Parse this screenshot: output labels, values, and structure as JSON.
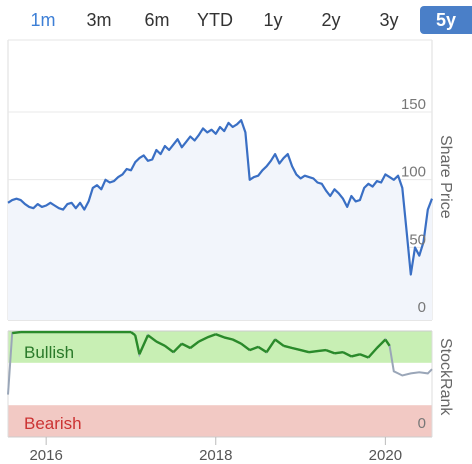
{
  "range_tabs": [
    {
      "label": "1m"
    },
    {
      "label": "3m"
    },
    {
      "label": "6m"
    },
    {
      "label": "YTD"
    },
    {
      "label": "1y"
    },
    {
      "label": "2y"
    },
    {
      "label": "3y"
    },
    {
      "label": "5y"
    }
  ],
  "colors": {
    "price_line": "#3a6fc4",
    "price_fill": "#f2f5fb",
    "bullish_band": "#c8efb4",
    "bearish_band": "#f2c9c4",
    "rank_line_bull": "#2a8a2a",
    "rank_line_bear": "#9aa6b8",
    "selected_tab": "#4a7fc8"
  },
  "chart_data": [
    {
      "type": "area",
      "ylabel": "Share Price",
      "yticks": [
        0,
        50,
        100,
        150
      ],
      "ylim": [
        0,
        160
      ],
      "xlim": [
        2015.55,
        2020.55
      ],
      "x": [
        2015.55,
        2015.6,
        2015.65,
        2015.7,
        2015.75,
        2015.8,
        2015.85,
        2015.9,
        2015.95,
        2016.0,
        2016.05,
        2016.1,
        2016.15,
        2016.2,
        2016.25,
        2016.3,
        2016.35,
        2016.4,
        2016.45,
        2016.5,
        2016.55,
        2016.6,
        2016.65,
        2016.7,
        2016.75,
        2016.8,
        2016.85,
        2016.9,
        2016.95,
        2017.0,
        2017.05,
        2017.1,
        2017.15,
        2017.2,
        2017.25,
        2017.3,
        2017.35,
        2017.4,
        2017.45,
        2017.5,
        2017.55,
        2017.6,
        2017.65,
        2017.7,
        2017.75,
        2017.8,
        2017.85,
        2017.9,
        2017.95,
        2018.0,
        2018.05,
        2018.1,
        2018.15,
        2018.2,
        2018.25,
        2018.3,
        2018.35,
        2018.4,
        2018.45,
        2018.5,
        2018.55,
        2018.6,
        2018.65,
        2018.7,
        2018.75,
        2018.8,
        2018.85,
        2018.9,
        2018.95,
        2019.0,
        2019.05,
        2019.1,
        2019.15,
        2019.2,
        2019.25,
        2019.3,
        2019.35,
        2019.4,
        2019.45,
        2019.5,
        2019.55,
        2019.6,
        2019.65,
        2019.7,
        2019.75,
        2019.8,
        2019.85,
        2019.9,
        2019.95,
        2020.0,
        2020.05,
        2020.1,
        2020.15,
        2020.2,
        2020.25,
        2020.3,
        2020.35,
        2020.4,
        2020.45,
        2020.5,
        2020.55
      ],
      "values": [
        77,
        79,
        80,
        79,
        76,
        74,
        73,
        76,
        74,
        75,
        77,
        75,
        73,
        72,
        76,
        77,
        73,
        77,
        72,
        78,
        88,
        90,
        87,
        94,
        92,
        93,
        96,
        98,
        102,
        101,
        107,
        110,
        112,
        108,
        109,
        116,
        113,
        119,
        116,
        120,
        124,
        118,
        122,
        126,
        123,
        127,
        132,
        129,
        131,
        128,
        133,
        130,
        136,
        133,
        135,
        138,
        129,
        94,
        96,
        97,
        101,
        104,
        108,
        113,
        106,
        110,
        113,
        104,
        98,
        95,
        97,
        96,
        95,
        92,
        91,
        86,
        82,
        87,
        84,
        80,
        74,
        82,
        78,
        79,
        88,
        91,
        89,
        93,
        92,
        98,
        96,
        94,
        97,
        88,
        56,
        24,
        44,
        38,
        48,
        72,
        80
      ],
      "series": [
        {
          "values_key": "values"
        }
      ]
    },
    {
      "type": "line",
      "ylabel": "StockRank",
      "yticks": [
        0
      ],
      "ylim": [
        0,
        100
      ],
      "bands": [
        {
          "label": "Bullish",
          "from": 70,
          "to": 100
        },
        {
          "label": "Bearish",
          "from": 0,
          "to": 30
        }
      ],
      "x": [
        2015.55,
        2015.6,
        2015.7,
        2015.8,
        2015.9,
        2016.0,
        2016.1,
        2016.2,
        2016.3,
        2016.4,
        2016.5,
        2016.6,
        2016.7,
        2016.8,
        2016.9,
        2017.0,
        2017.05,
        2017.1,
        2017.2,
        2017.3,
        2017.4,
        2017.5,
        2017.6,
        2017.7,
        2017.8,
        2017.9,
        2018.0,
        2018.1,
        2018.2,
        2018.3,
        2018.4,
        2018.5,
        2018.6,
        2018.7,
        2018.8,
        2018.9,
        2019.0,
        2019.1,
        2019.2,
        2019.3,
        2019.4,
        2019.5,
        2019.6,
        2019.7,
        2019.8,
        2019.9,
        2020.0,
        2020.05,
        2020.1,
        2020.15,
        2020.2,
        2020.3,
        2020.4,
        2020.5,
        2020.55
      ],
      "values": [
        40,
        98,
        99,
        99,
        99,
        99,
        99,
        99,
        99,
        99,
        99,
        99,
        99,
        99,
        99,
        99,
        96,
        78,
        96,
        90,
        86,
        80,
        88,
        84,
        90,
        94,
        97,
        94,
        92,
        88,
        82,
        85,
        80,
        92,
        86,
        84,
        82,
        80,
        81,
        82,
        79,
        80,
        76,
        78,
        75,
        84,
        92,
        86,
        62,
        60,
        58,
        60,
        61,
        60,
        64
      ]
    }
  ],
  "x_ticks": [
    2016,
    2018,
    2020
  ]
}
